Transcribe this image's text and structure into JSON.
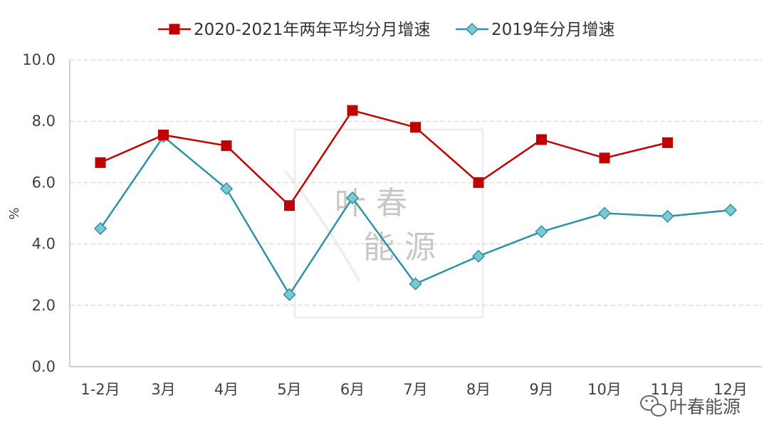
{
  "chart_data": {
    "type": "line",
    "categories": [
      "1-2月",
      "3月",
      "4月",
      "5月",
      "6月",
      "7月",
      "8月",
      "9月",
      "10月",
      "11月",
      "12月"
    ],
    "series": [
      {
        "name": "2020-2021年两年平均分月增速",
        "color": "#c00000",
        "marker": "square",
        "values": [
          6.65,
          7.55,
          7.2,
          5.25,
          8.35,
          7.8,
          6.0,
          7.4,
          6.8,
          7.3,
          null
        ]
      },
      {
        "name": "2019年分月增速",
        "color": "#2e93a5",
        "marker_fill": "#7ec8d2",
        "marker": "diamond",
        "values": [
          4.5,
          7.5,
          5.8,
          2.35,
          5.5,
          2.7,
          3.6,
          4.4,
          5.0,
          4.9,
          5.1
        ]
      }
    ],
    "ylabel": "%",
    "ylim": [
      0,
      10
    ],
    "yticks": [
      0,
      2,
      4,
      6,
      8,
      10
    ],
    "ytick_labels": [
      "0.0",
      "2.0",
      "4.0",
      "6.0",
      "8.0",
      "10.0"
    ],
    "grid": true,
    "legend_position": "top-center"
  },
  "watermark": {
    "line1": "叶 春",
    "line2": "能 源"
  },
  "badge": {
    "text": "叶春能源",
    "icon": "wechat-icon"
  }
}
